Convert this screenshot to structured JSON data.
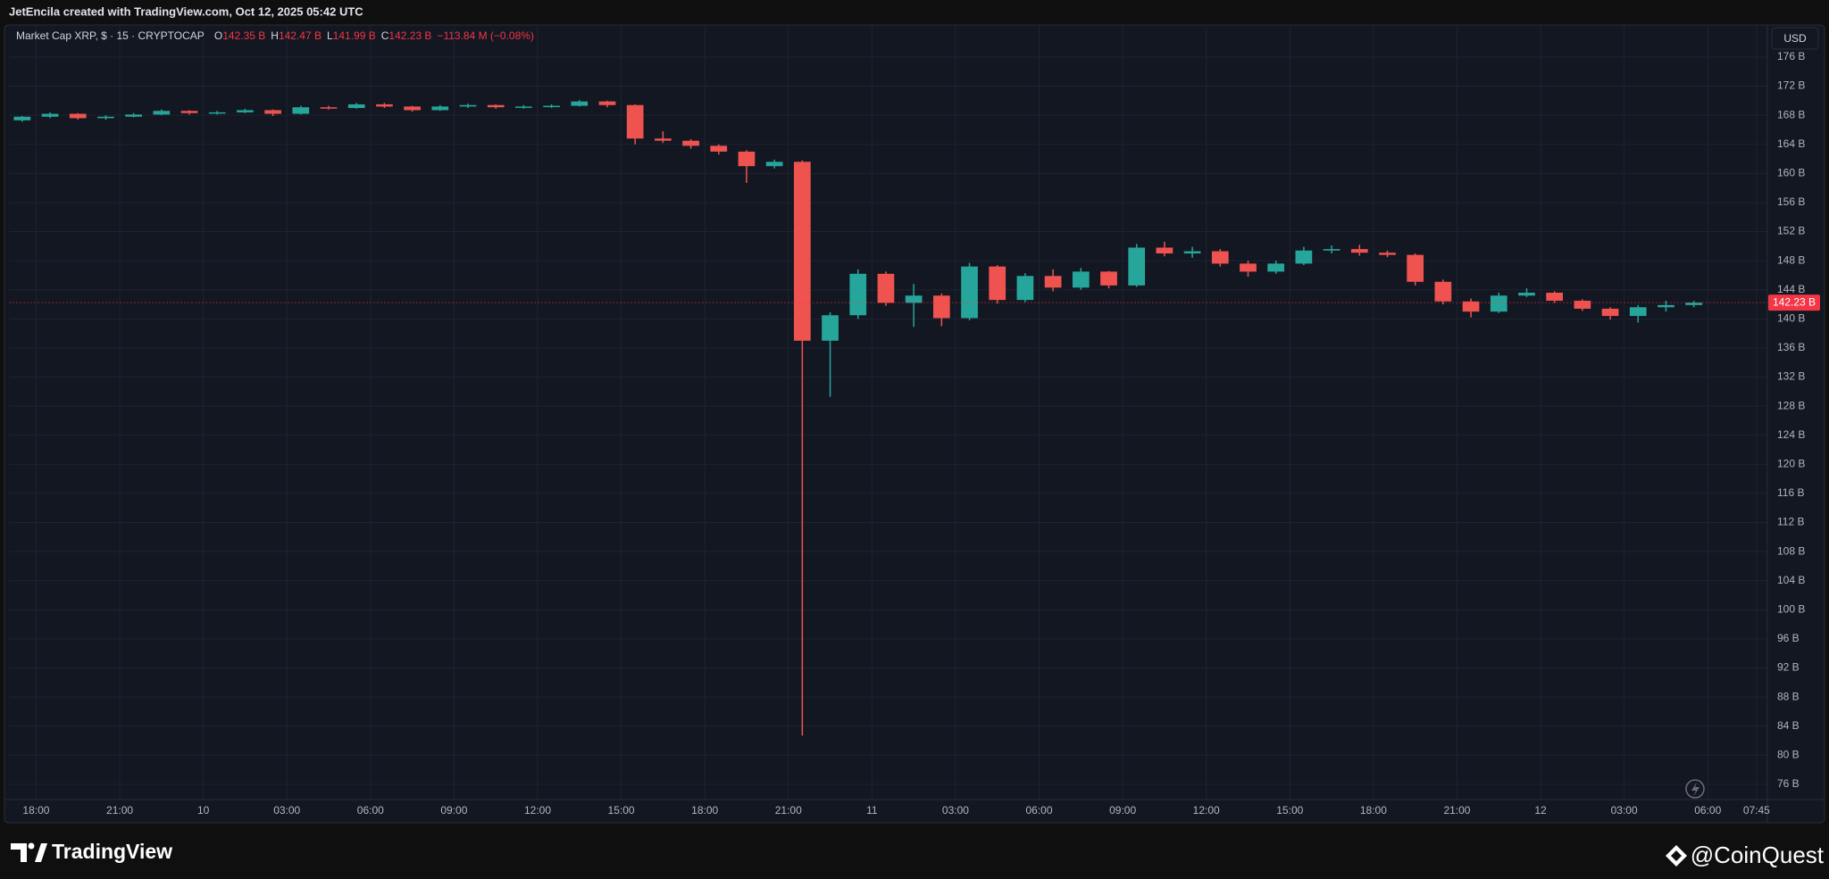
{
  "header": {
    "attribution": "JetEncila created with TradingView.com, Oct 12, 2025 05:42 UTC"
  },
  "ui": {
    "currency": "USD",
    "brand": "TradingView",
    "watermark": "@CoinQuest"
  },
  "chart_data": {
    "type": "candlestick",
    "symbol": "Market Cap XRP, $ · 15 · CRYPTOCAP",
    "ohlc_legend": [
      {
        "key": "O",
        "text": "142.35 B"
      },
      {
        "key": "H",
        "text": "142.47 B"
      },
      {
        "key": "L",
        "text": "141.99 B"
      },
      {
        "key": "C",
        "text": "142.23 B"
      }
    ],
    "change": "−113.84 M (−0.08%)",
    "up_color": "#26a69a",
    "down_color": "#ef5350",
    "grid": true,
    "x": [
      -1,
      0,
      1,
      2,
      3,
      4,
      5,
      6,
      7,
      8,
      9,
      10,
      11,
      12,
      13,
      14,
      15,
      16,
      17,
      18,
      19,
      20,
      21,
      22,
      23,
      24,
      25,
      26,
      27,
      28,
      29,
      30,
      31,
      32,
      33,
      34,
      35,
      36,
      37,
      38,
      39,
      40,
      41,
      42,
      43,
      44,
      45,
      46,
      47,
      48,
      49,
      50,
      51,
      52,
      53,
      54,
      55,
      56,
      57,
      58,
      59
    ],
    "open": [
      167.3,
      167.8,
      168.2,
      167.6,
      167.8,
      168.1,
      168.6,
      168.3,
      168.4,
      168.7,
      168.2,
      169.1,
      169.0,
      169.5,
      169.2,
      168.7,
      169.2,
      169.4,
      169.1,
      169.2,
      169.3,
      169.9,
      169.4,
      164.8,
      164.5,
      163.8,
      163.0,
      161.0,
      161.6,
      137.0,
      140.5,
      146.2,
      142.2,
      143.2,
      140.1,
      147.2,
      142.6,
      145.9,
      144.3,
      146.5,
      144.6,
      149.8,
      149.0,
      149.3,
      147.6,
      146.5,
      147.6,
      149.4,
      149.6,
      149.1,
      148.8,
      145.1,
      142.4,
      141.0,
      143.2,
      143.6,
      142.5,
      141.4,
      140.4,
      141.6,
      141.9
    ],
    "high": [
      167.9,
      168.4,
      168.3,
      168.0,
      168.3,
      168.8,
      168.7,
      168.6,
      168.9,
      168.8,
      169.3,
      169.3,
      169.7,
      169.7,
      169.3,
      169.4,
      169.6,
      169.5,
      169.4,
      169.5,
      170.1,
      170.0,
      169.5,
      165.8,
      164.7,
      164.0,
      163.2,
      161.9,
      161.8,
      140.9,
      146.8,
      146.5,
      144.8,
      143.5,
      147.7,
      147.4,
      146.3,
      146.8,
      147.0,
      146.6,
      150.3,
      150.6,
      149.9,
      149.6,
      148.0,
      148.0,
      149.9,
      150.1,
      150.2,
      149.4,
      149.0,
      145.4,
      142.8,
      143.6,
      144.2,
      143.8,
      142.7,
      141.6,
      141.9,
      142.5,
      142.47
    ],
    "low": [
      167.1,
      167.6,
      167.4,
      167.4,
      167.7,
      168.0,
      168.1,
      168.1,
      168.3,
      167.9,
      168.1,
      168.8,
      168.9,
      169.0,
      168.5,
      168.6,
      169.0,
      168.9,
      168.9,
      169.0,
      169.2,
      169.1,
      164.0,
      164.2,
      163.4,
      162.6,
      158.7,
      160.7,
      82.7,
      129.3,
      140.0,
      141.8,
      138.9,
      139.0,
      139.8,
      142.1,
      142.3,
      143.8,
      144.0,
      144.2,
      144.4,
      148.6,
      148.4,
      147.2,
      145.8,
      146.2,
      147.4,
      149.0,
      148.7,
      148.5,
      144.6,
      142.0,
      140.2,
      140.8,
      143.0,
      142.2,
      141.1,
      139.9,
      139.5,
      141.0,
      141.6
    ],
    "close": [
      167.8,
      168.2,
      167.6,
      167.8,
      168.1,
      168.6,
      168.3,
      168.4,
      168.7,
      168.2,
      169.1,
      169.0,
      169.5,
      169.2,
      168.7,
      169.2,
      169.4,
      169.1,
      169.2,
      169.3,
      169.9,
      169.4,
      164.8,
      164.5,
      163.8,
      163.0,
      161.0,
      161.6,
      137.0,
      140.5,
      146.2,
      142.2,
      143.2,
      140.1,
      147.2,
      142.6,
      145.9,
      144.3,
      146.5,
      144.6,
      149.8,
      149.0,
      149.3,
      147.6,
      146.5,
      147.6,
      149.4,
      149.6,
      149.1,
      148.8,
      145.1,
      142.4,
      141.0,
      143.2,
      143.6,
      142.5,
      141.4,
      140.4,
      141.6,
      141.9,
      142.23
    ],
    "last_price": {
      "value": 142.23,
      "label": "142.23 B"
    },
    "xlim": [
      -0.96,
      62.14
    ],
    "xticks": [
      {
        "value": 0,
        "label": "18:00"
      },
      {
        "value": 3,
        "label": "21:00"
      },
      {
        "value": 6,
        "label": "10"
      },
      {
        "value": 9,
        "label": "03:00"
      },
      {
        "value": 12,
        "label": "06:00"
      },
      {
        "value": 15,
        "label": "09:00"
      },
      {
        "value": 18,
        "label": "12:00"
      },
      {
        "value": 21,
        "label": "15:00"
      },
      {
        "value": 24,
        "label": "18:00"
      },
      {
        "value": 27,
        "label": "21:00"
      },
      {
        "value": 30,
        "label": "11"
      },
      {
        "value": 33,
        "label": "03:00"
      },
      {
        "value": 36,
        "label": "06:00"
      },
      {
        "value": 39,
        "label": "09:00"
      },
      {
        "value": 42,
        "label": "12:00"
      },
      {
        "value": 45,
        "label": "15:00"
      },
      {
        "value": 48,
        "label": "18:00"
      },
      {
        "value": 51,
        "label": "21:00"
      },
      {
        "value": 54,
        "label": "12"
      },
      {
        "value": 57,
        "label": "03:00"
      },
      {
        "value": 60,
        "label": "06:00"
      },
      {
        "value": 61.75,
        "label": "07:45"
      }
    ],
    "ylim": [
      73.9,
      177.1
    ],
    "yticks": [
      {
        "value": 76,
        "label": "76 B"
      },
      {
        "value": 80,
        "label": "80 B"
      },
      {
        "value": 84,
        "label": "84 B"
      },
      {
        "value": 88,
        "label": "88 B"
      },
      {
        "value": 92,
        "label": "92 B"
      },
      {
        "value": 96,
        "label": "96 B"
      },
      {
        "value": 100,
        "label": "100 B"
      },
      {
        "value": 104,
        "label": "104 B"
      },
      {
        "value": 108,
        "label": "108 B"
      },
      {
        "value": 112,
        "label": "112 B"
      },
      {
        "value": 116,
        "label": "116 B"
      },
      {
        "value": 120,
        "label": "120 B"
      },
      {
        "value": 124,
        "label": "124 B"
      },
      {
        "value": 128,
        "label": "128 B"
      },
      {
        "value": 132,
        "label": "132 B"
      },
      {
        "value": 136,
        "label": "136 B"
      },
      {
        "value": 140,
        "label": "140 B"
      },
      {
        "value": 144,
        "label": "144 B"
      },
      {
        "value": 148,
        "label": "148 B"
      },
      {
        "value": 152,
        "label": "152 B"
      },
      {
        "value": 156,
        "label": "156 B"
      },
      {
        "value": 160,
        "label": "160 B"
      },
      {
        "value": 164,
        "label": "164 B"
      },
      {
        "value": 168,
        "label": "168 B"
      },
      {
        "value": 172,
        "label": "172 B"
      },
      {
        "value": 176,
        "label": "176 B"
      }
    ]
  }
}
